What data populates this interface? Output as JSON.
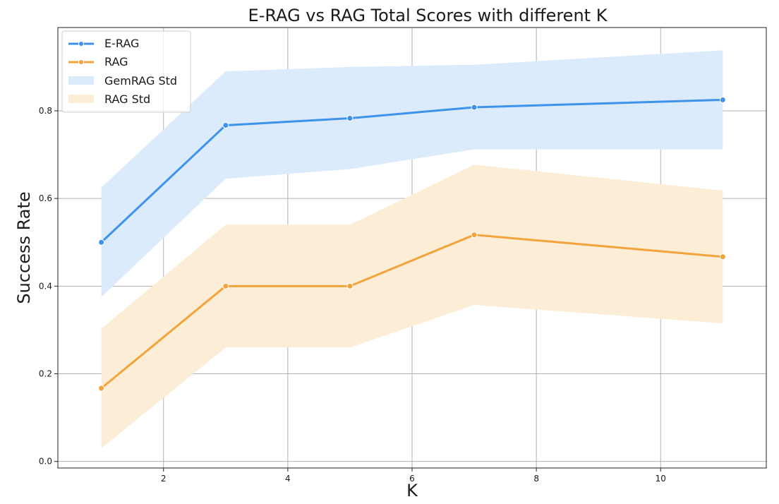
{
  "chart_data": {
    "type": "line",
    "title": "E-RAG vs RAG Total Scores with different K",
    "xlabel": "K",
    "ylabel": "Success Rate",
    "xlim": [
      0.3,
      11.7
    ],
    "ylim": [
      -0.015,
      0.99
    ],
    "xticks": [
      2,
      4,
      6,
      8,
      10
    ],
    "yticks": [
      0.0,
      0.2,
      0.4,
      0.6,
      0.8
    ],
    "xtick_labels": [
      "2",
      "4",
      "6",
      "8",
      "10"
    ],
    "ytick_labels": [
      "0.0",
      "0.2",
      "0.4",
      "0.6",
      "0.8"
    ],
    "grid": true,
    "legend_position": "top-left",
    "x": [
      1,
      3,
      5,
      7,
      11
    ],
    "series": [
      {
        "name": "E-RAG",
        "color": "#3d93ec",
        "values": [
          0.5,
          0.767,
          0.783,
          0.808,
          0.825
        ]
      },
      {
        "name": "RAG",
        "color": "#f2a43a",
        "values": [
          0.167,
          0.4,
          0.4,
          0.517,
          0.467
        ]
      }
    ],
    "bands": [
      {
        "name": "GemRAG Std",
        "color": "#dcebfb",
        "upper": [
          0.625,
          0.89,
          0.9,
          0.905,
          0.938
        ],
        "lower": [
          0.375,
          0.645,
          0.667,
          0.712,
          0.712
        ]
      },
      {
        "name": "RAG Std",
        "color": "#fcedd6",
        "upper": [
          0.303,
          0.54,
          0.54,
          0.677,
          0.618
        ],
        "lower": [
          0.03,
          0.26,
          0.26,
          0.357,
          0.315
        ]
      }
    ]
  }
}
